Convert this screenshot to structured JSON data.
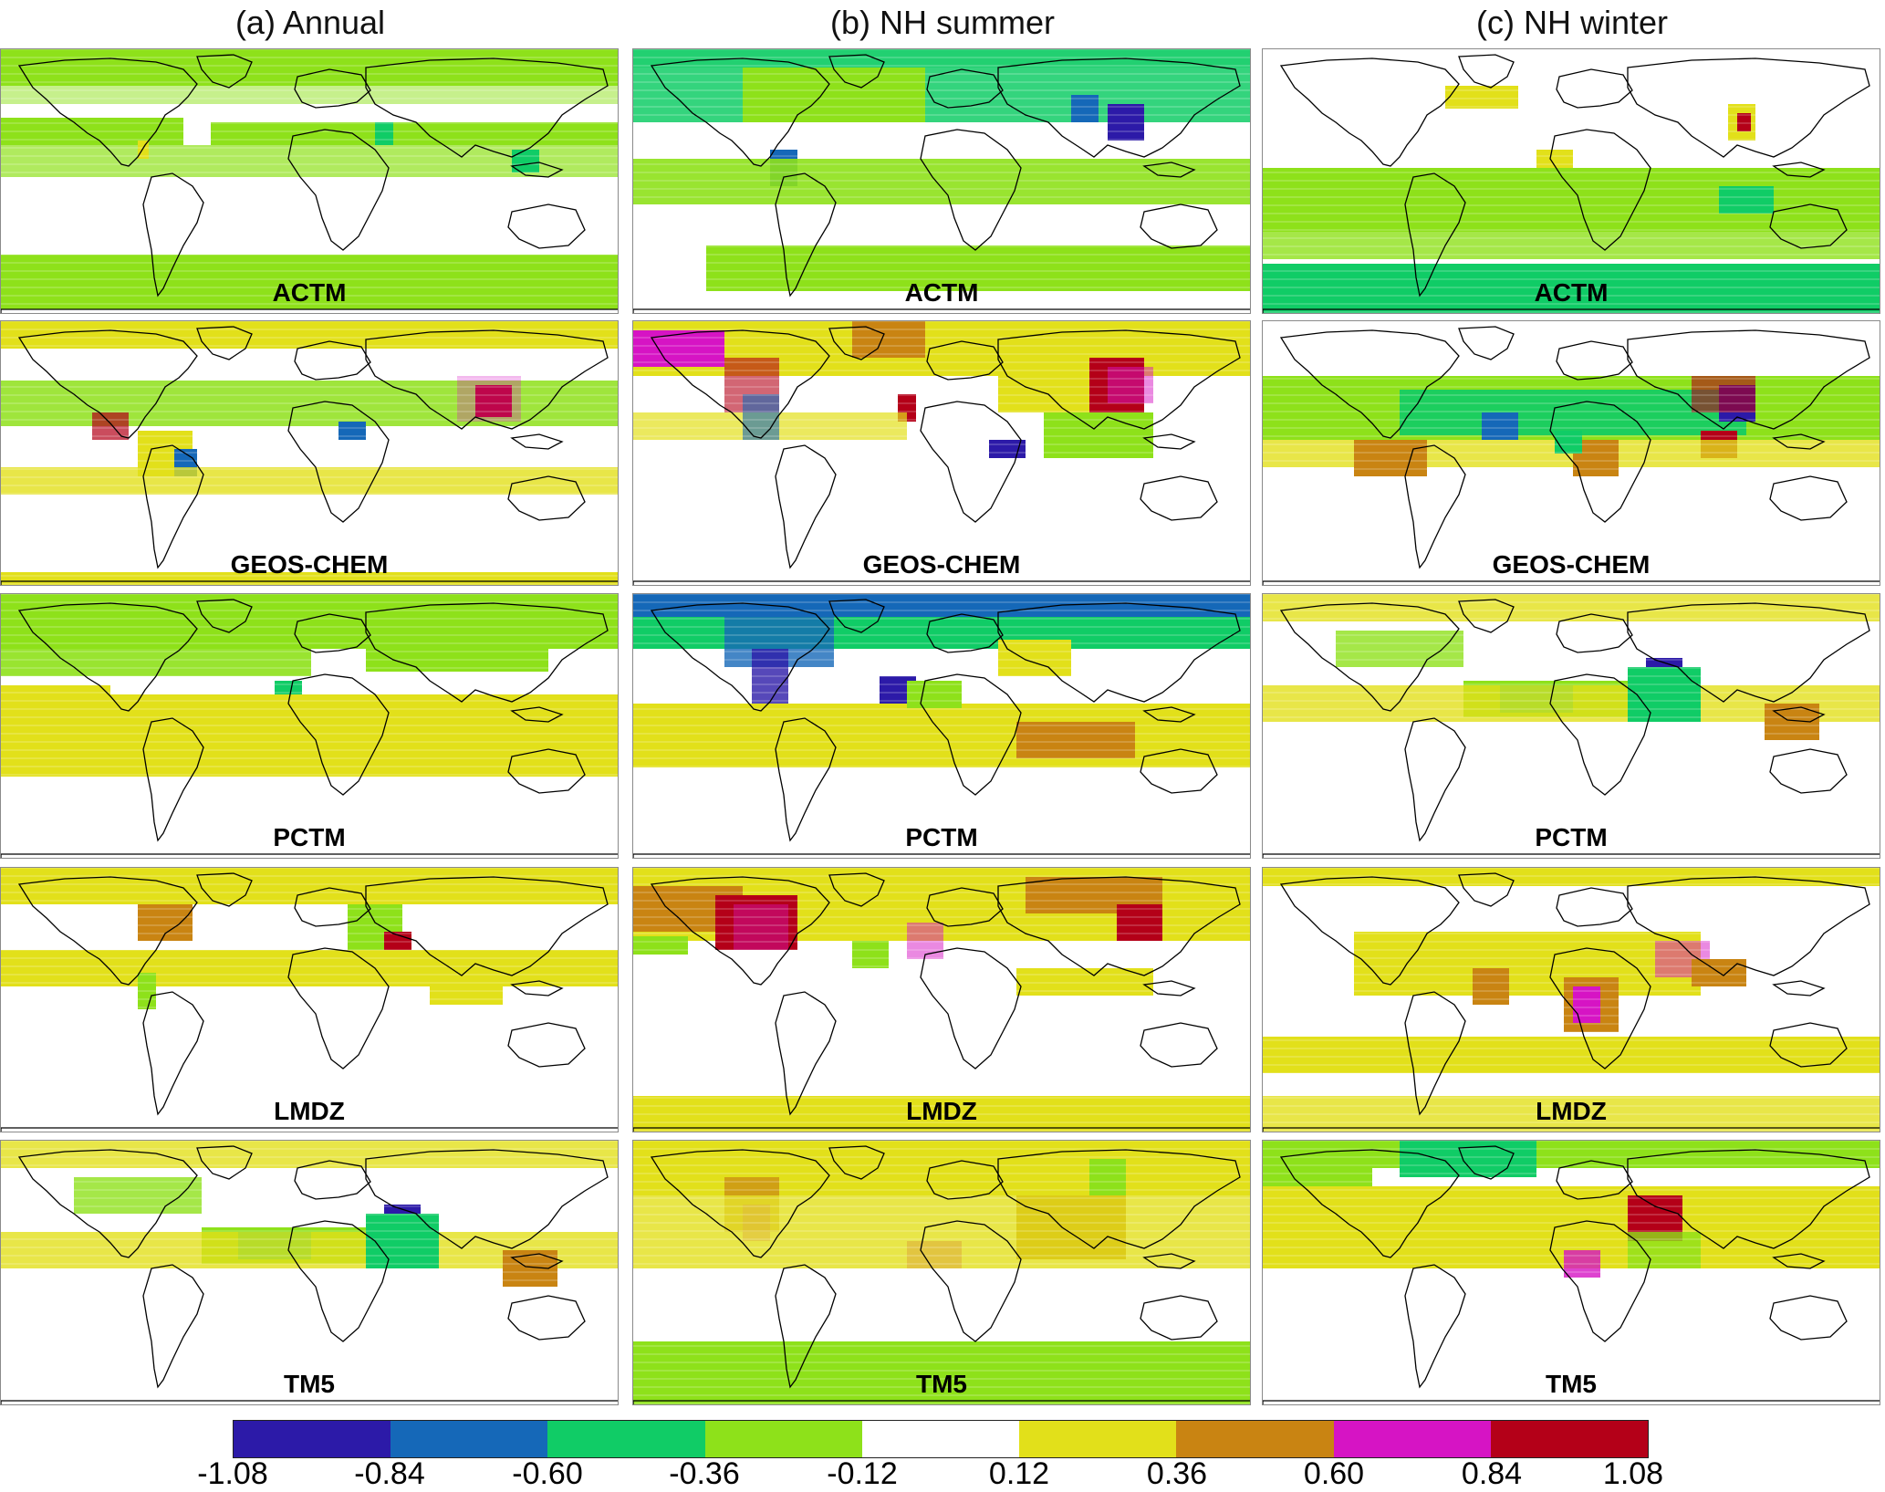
{
  "columns": [
    {
      "title": "(a) Annual"
    },
    {
      "title": "(b) NH summer"
    },
    {
      "title": "(c) NH winter"
    }
  ],
  "models": [
    "ACTM",
    "GEOS-CHEM",
    "PCTM",
    "LMDZ",
    "TM5"
  ],
  "colorbar": {
    "ticks": [
      "-1.08",
      "-0.84",
      "-0.60",
      "-0.36",
      "-0.12",
      "0.12",
      "0.36",
      "0.60",
      "0.84",
      "1.08"
    ],
    "colors": [
      "#2c1aa8",
      "#1568b8",
      "#10cc66",
      "#8ee11a",
      "#ffffff",
      "#e2e01a",
      "#c98412",
      "#d614c4",
      "#b40018"
    ]
  },
  "panel_patterns": {
    "ACTM": [
      "green_bands",
      "green_north_blue",
      "green_south"
    ],
    "GEOS-CHEM": [
      "mixed_yellow_green",
      "yellow_red_hot",
      "green_tropics"
    ],
    "PCTM": [
      "green_north_yellow_south",
      "blue_north_orange_south",
      "yellow_green_mix"
    ],
    "LMDZ": [
      "yellow_bands",
      "yellow_red_north",
      "yellow_tropics"
    ],
    "TM5": [
      "yellow_green_mix",
      "yellow_green_south",
      "green_north"
    ]
  }
}
